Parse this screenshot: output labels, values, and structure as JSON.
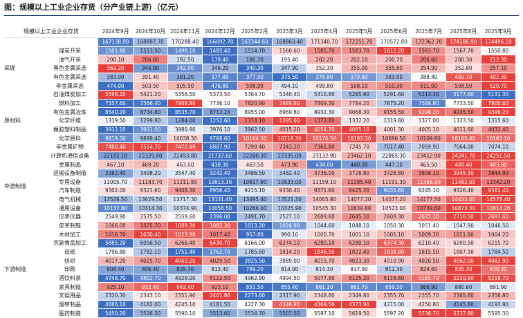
{
  "title": "图：规模以上工业企业存货（分产业链上游）（亿元）",
  "table": {
    "header_label": "规模以上工业企业存货",
    "columns": [
      "2024年9月",
      "2024年10月",
      "2024年11月",
      "2024年12月",
      "2025年2月",
      "2025年3月",
      "2025年4月",
      "2025年5月",
      "2025年6月",
      "2025年7月",
      "2025年8月",
      "2025年9月"
    ],
    "total": {
      "label": "",
      "values": [
        "167138.90",
        "168887.70",
        "170288.40",
        "166692.70",
        "167344.60",
        "168863.40",
        "171340.70",
        "172251.70",
        "170572.80",
        "172362.70",
        "174186.90",
        "174496.10"
      ]
    },
    "groups": [
      {
        "category": "采掘",
        "rows": [
          {
            "item": "煤炭开采",
            "values": [
              "1501.80",
              "1513.50",
              "1498.10",
              "1485.40",
              "1514.70",
              "1560.60",
              "1585.70",
              "1583.70",
              "1612.20",
              "1583.70",
              "1567.70",
              "1550.80"
            ]
          },
          {
            "item": "油气开采",
            "values": [
              "200.10",
              "206.60",
              "192.50",
              "179.40",
              "186.70",
              "195.40",
              "202.20",
              "202.10",
              "200.70",
              "206.60",
              "200.30",
              "212.30"
            ]
          },
          {
            "item": "黑色金属采选",
            "values": [
              "362.20",
              "344.00",
              "342.90",
              "346.20",
              "340.30",
              "347.90",
              "352.30",
              "355.00",
              "355.60",
              "354.90",
              "352.80",
              "357.10"
            ]
          },
          {
            "item": "有色金属采选",
            "values": [
              "383.00",
              "391.40",
              "381.20",
              "377.80",
              "377.90",
              "375.50",
              "378.80",
              "379.80",
              "383.00",
              "388.40",
              "400.70",
              "402.30"
            ]
          },
          {
            "item": "非金属采选",
            "values": [
              "474.00",
              "503.50",
              "505.50",
              "476.80",
              "508.90",
              "494.10",
              "499.80",
              "508.10",
              "510.30",
              "511.00",
              "508.50",
              "520.70"
            ]
          }
        ]
      },
      {
        "category": "原材料",
        "rows": [
          {
            "item": "石油煤炭加工",
            "values": [
              "5598.20",
              "5421.20",
              "5356.50",
              "5373.50",
              "5364.70",
              "5340.40",
              "5310.80",
              "5265.60",
              "5291.60",
              "5213.30",
              "5177.60",
              "5131.30"
            ]
          },
          {
            "item": "燃料加工",
            "values": [
              "7557.60",
              "7566.40",
              "7908.80",
              "7736.10",
              "7820.90",
              "7889.80",
              "7809.30",
              "7784.20",
              "7675.20",
              "7586.80",
              "7733.50",
              "7900.60"
            ]
          },
          {
            "item": "有色金属冶炼",
            "values": [
              "8540.20",
              "8734.80",
              "8535.70",
              "8712.20",
              "8955.00",
              "8969.80",
              "8932.30",
              "9068.30",
              "9155.50",
              "9298.20",
              "9245.50",
              "9396.20"
            ]
          },
          {
            "item": "化学纤维",
            "values": [
              "1319.50",
              "1299.80",
              "1284.00",
              "1252.60",
              "1374.10",
              "1395.60",
              "1373.80",
              "1332.20",
              "1319.80",
              "1327.00",
              "1323.50",
              "1315.60"
            ]
          },
          {
            "item": "橡胶塑料制品",
            "values": [
              "3912.10",
              "3931.00",
              "3980.90",
              "3976.10",
              "3962.50",
              "4015.20",
              "4054.70",
              "4065.10",
              "4001.30",
              "4005.10",
              "4011.60",
              "4033.40"
            ]
          },
          {
            "item": "化学原料",
            "values": [
              "9819.30",
              "9899.40",
              "10038.30",
              "9768.60",
              "10164.30",
              "10218.30",
              "10170.50",
              "10197.30",
              "10090.50",
              "10109.80",
              "10165.40",
              "10163.10"
            ]
          },
          {
            "item": "非金属矿物",
            "values": [
              "7480.40",
              "7514.70",
              "7472.40",
              "6807.90",
              "7299.40",
              "7343.20",
              "7361.80",
              "7245.70",
              "7017.40",
              "7059.90",
              "7064.00",
              "7074.10"
            ]
          }
        ]
      },
      {
        "category": "中游制造",
        "rows": [
          {
            "item": "计算机通信设备",
            "values": [
              "22182.10",
              "22329.80",
              "22493.80",
              "21737.60",
              "22280.30",
              "22335.00",
              "23132.90",
              "23462.10",
              "22865.30",
              "23452.90",
              "24241.70",
              "24251.50"
            ]
          },
          {
            "item": "金属制品",
            "values": [
              "467.10",
              "469.20",
              "463.00",
              "430.30",
              "463.50",
              "473.90",
              "434.00",
              "440.30",
              "447.10",
              "465.50",
              "489.40",
              "483.80"
            ]
          },
          {
            "item": "运输设备制造",
            "values": [
              "3382.40",
              "3498.20",
              "3547.40",
              "3242.40",
              "3486.50",
              "3482.40",
              "3736.00",
              "3728.80",
              "3728.80",
              "3806.10",
              "3945.30",
              "3844.90"
            ]
          },
          {
            "item": "专用设备",
            "values": [
              "11005.70",
              "11183.70",
              "11211.80",
              "10613.30",
              "10817.60",
              "10833.00",
              "11159.10",
              "11295.40",
              "11191.30",
              "11366.90",
              "11482.00",
              "11342.20"
            ]
          },
          {
            "item": "汽车制造",
            "values": [
              "9302.00",
              "9321.60",
              "9408.30",
              "8956.40",
              "9215.10",
              "9330.40",
              "9371.60",
              "9425.20",
              "9035.60",
              "9245.10",
              "9326.40",
              "9561.40"
            ]
          },
          {
            "item": "电气机械",
            "values": [
              "13526.50",
              "13629.50",
              "13717.30",
              "13131.40",
              "13495.40",
              "13521.30",
              "14065.80",
              "14077.20",
              "14077.20",
              "14177.50",
              "14433.00",
              "14578.40"
            ]
          },
          {
            "item": "通用设备",
            "values": [
              "10137.80",
              "10314.30",
              "10374.90",
              "10056.50",
              "10266.00",
              "10325.90",
              "10545.30",
              "10639.80",
              "10523.00",
              "10739.60",
              "10873.30",
              "10814.20"
            ]
          },
          {
            "item": "仪表仪器",
            "values": [
              "2549.90",
              "2575.50",
              "2559.60",
              "2396.00",
              "2491.70",
              "2527.10",
              "2609.60",
              "2645.10",
              "2608.30",
              "2671.10",
              "2716.50",
              "2697.60"
            ]
          }
        ]
      },
      {
        "category": "下游制造",
        "rows": [
          {
            "item": "皮革制鞋",
            "values": [
              "1066.00",
              "1075.70",
              "1089.30",
              "1082.30",
              "1013.20",
              "1024.90",
              "1044.60",
              "1048.10",
              "1050.30",
              "1051.40",
              "1047.90",
              "1046.50"
            ]
          },
          {
            "item": "木材加工",
            "values": [
              "1016.70",
              "1030.40",
              "1023.90",
              "1017.40",
              "957.80",
              "990.10",
              "1000.70",
              "1001.10",
              "1005.10",
              "1009.30",
              "1011.60",
              "1004.20"
            ]
          },
          {
            "item": "农副食品加工",
            "values": [
              "5885.20",
              "6056.50",
              "6266.40",
              "6430.70",
              "6166.00",
              "6274.10",
              "6280.10",
              "6280.10",
              "6374.30",
              "6210.40",
              "6200.50",
              "6215.70"
            ]
          },
          {
            "item": "造纸",
            "values": [
              "1796.80",
              "1782.10",
              "1751.40",
              "1762.70",
              "1785.60",
              "1814.20",
              "1846.50",
              "1822.40",
              "1838.80",
              "1815.50",
              "1807.90",
              "1784.50"
            ]
          },
          {
            "item": "纺织",
            "values": [
              "4017.20",
              "4025.70",
              "4063.20",
              "4029.50",
              "3925.50",
              "3989.00",
              "4015.70",
              "4023.30",
              "4010.90",
              "4020.50",
              "4062.00",
              "4062.90"
            ]
          },
          {
            "item": "印刷",
            "values": [
              "806.40",
              "806.40",
              "805.70",
              "813.40",
              "799.20",
              "814.00",
              "814.30",
              "817.90",
              "811.30",
              "824.60",
              "835.30",
              "830.30"
            ]
          },
          {
            "item": "酒饮料茶",
            "values": [
              "4748.70",
              "4802.70",
              "4929.00",
              "5122.50",
              "4962.90",
              "4994.50",
              "5077.80",
              "5125.20",
              "5116.60",
              "5165.70",
              "5230.60",
              "5218.70"
            ]
          },
          {
            "item": "家具制造",
            "values": [
              "925.10",
              "932.40",
              "942.40",
              "923.10",
              "851.50",
              "855.40",
              "861.10",
              "861.70",
              "859.30",
              "866.90",
              "880.60",
              "891.90"
            ]
          },
          {
            "item": "文娱用品",
            "values": [
              "2320.30",
              "2343.10",
              "2351.90",
              "2401.80",
              "2273.60",
              "2317.90",
              "2348.80",
              "2349.80",
              "2355.70",
              "2355.70",
              "2365.80",
              "2358.80"
            ]
          },
          {
            "item": "烟草制品",
            "values": [
              "4086.10",
              "4182.00",
              "4245.10",
              "4181.50",
              "4227.30",
              "4346.90",
              "4369.50",
              "4373.90",
              "4215.00",
              "4250.80",
              "4145.80",
              "4193.90"
            ]
          },
          {
            "item": "医药制造",
            "values": [
              "5450.20",
              "5526.30",
              "5590.10",
              "5513.60",
              "5534.70",
              "5507.50",
              "5597.10",
              "5619.50",
              "5597.20",
              "5736.70",
              "5737.80",
              "5595.30"
            ]
          }
        ]
      }
    ]
  },
  "colors": {
    "high": "#e8403a",
    "low": "#3c6fc4",
    "mid": "#ffffff"
  }
}
